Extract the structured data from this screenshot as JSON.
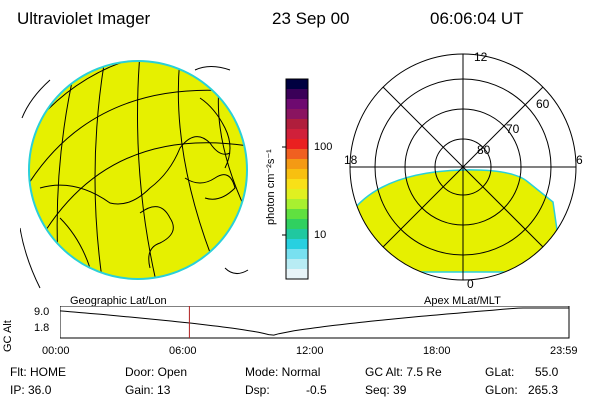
{
  "header": {
    "instrument": "Ultraviolet Imager",
    "date": "23 Sep 00",
    "time": "06:06:04 UT"
  },
  "colorbar": {
    "unit_label": "photon cm⁻²s⁻¹",
    "ticks": [
      "100",
      "10"
    ],
    "colors": [
      "#000040",
      "#3a0058",
      "#6e0a70",
      "#8a1460",
      "#b01e3c",
      "#d0203a",
      "#ea2020",
      "#f06020",
      "#f49a14",
      "#f8c010",
      "#f8e018",
      "#e0f020",
      "#a8f030",
      "#60e040",
      "#30d060",
      "#20c8a0",
      "#28d0e0",
      "#78e0f0",
      "#b8ecf4",
      "#e8f4f8"
    ]
  },
  "polar_plot": {
    "labels": {
      "top": "12",
      "left": "18",
      "right": "6",
      "bottom": "0",
      "ring60": "60",
      "ring70": "70",
      "ring80": "80"
    }
  },
  "timeline": {
    "left_title": "Geographic Lat/Lon",
    "right_title": "Apex MLat/MLT",
    "axis_label": "GC Alt",
    "y_max": "9.0",
    "y_min": "1.8",
    "time_ticks": [
      "00:00",
      "06:00",
      "12:00",
      "18:00",
      "23:59"
    ],
    "current_time_hours": 6.1
  },
  "info": {
    "flt_label": "Flt: HOME",
    "ip_label": "IP: 36.0",
    "door_label": "Door: Open",
    "gain_label": "Gain: 13",
    "mode_label": "Mode: Normal",
    "dsp_label": "Dsp:",
    "dsp_value": "-0.5",
    "gcalt_label": "GC Alt: 7.5 Re",
    "seq_label": "Seq: 39",
    "glat_label": "GLat:",
    "glat_value": "55.0",
    "glon_label": "GLon:",
    "glon_value": "265.3"
  },
  "colors": {
    "earth_fill": "#e6f000",
    "limb": "#2ad0d8",
    "current_time_marker": "#b02020"
  }
}
